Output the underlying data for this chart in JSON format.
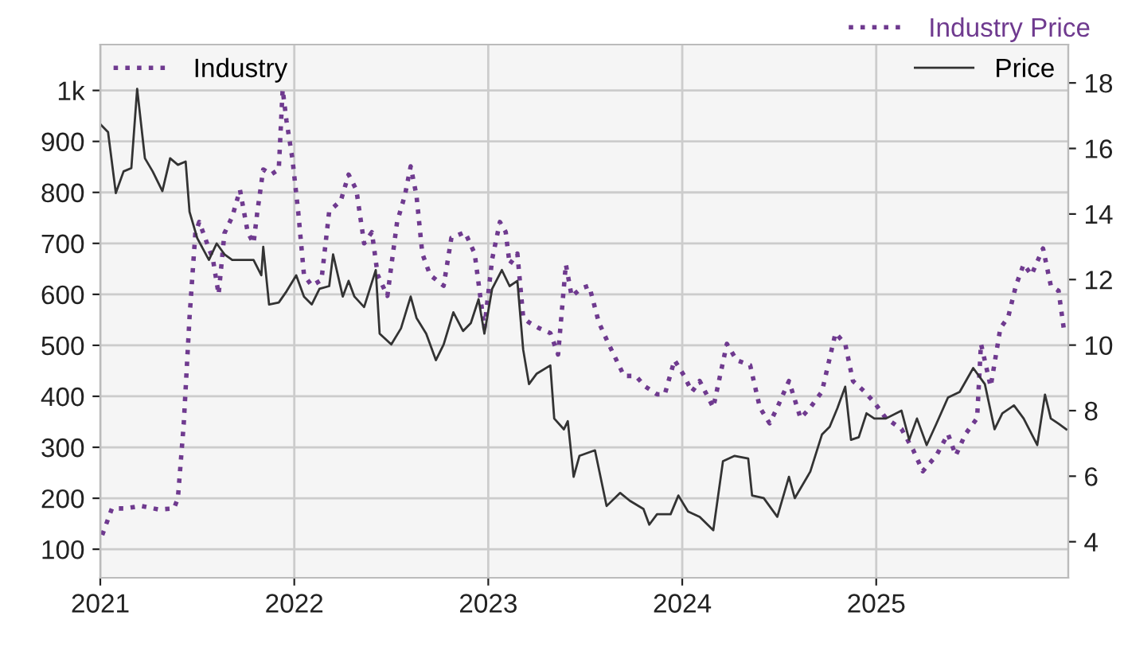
{
  "chart_data": {
    "type": "line",
    "title": "Industry Price",
    "legend": "top",
    "grid": true,
    "xlim": [
      2021,
      2025.99
    ],
    "xticks": [
      2021,
      2022,
      2023,
      2024,
      2025
    ],
    "ylim": [
      44,
      1090
    ],
    "yticks": [
      100,
      200,
      300,
      400,
      500,
      600,
      700,
      800,
      900,
      {
        "value": 1000,
        "label": "1k"
      }
    ],
    "y2lim": [
      2.9,
      19.17
    ],
    "y2ticks": [
      4,
      6,
      8,
      10,
      12,
      14,
      16,
      18
    ],
    "series": [
      {
        "name": "Industry",
        "color": "#6f3a8f",
        "line_style": "dotted",
        "axis": "y",
        "x": [
          2021.01,
          2021.06,
          2021.13,
          2021.21,
          2021.3,
          2021.38,
          2021.4,
          2021.43,
          2021.46,
          2021.49,
          2021.51,
          2021.56,
          2021.58,
          2021.61,
          2021.64,
          2021.68,
          2021.72,
          2021.76,
          2021.79,
          2021.81,
          2021.84,
          2021.88,
          2021.92,
          2021.94,
          2021.96,
          2021.99,
          2022.02,
          2022.05,
          2022.09,
          2022.14,
          2022.18,
          2022.24,
          2022.28,
          2022.32,
          2022.36,
          2022.4,
          2022.43,
          2022.48,
          2022.53,
          2022.57,
          2022.6,
          2022.63,
          2022.66,
          2022.7,
          2022.77,
          2022.81,
          2022.88,
          2022.93,
          2022.98,
          2023.02,
          2023.06,
          2023.09,
          2023.11,
          2023.15,
          2023.18,
          2023.21,
          2023.26,
          2023.32,
          2023.36,
          2023.4,
          2023.43,
          2023.48,
          2023.52,
          2023.57,
          2023.62,
          2023.7,
          2023.76,
          2023.81,
          2023.87,
          2023.91,
          2023.96,
          2024.01,
          2024.05,
          2024.09,
          2024.16,
          2024.23,
          2024.28,
          2024.35,
          2024.4,
          2024.45,
          2024.49,
          2024.55,
          2024.61,
          2024.66,
          2024.72,
          2024.79,
          2024.84,
          2024.88,
          2024.94,
          2024.99,
          2025.05,
          2025.13,
          2025.19,
          2025.24,
          2025.31,
          2025.37,
          2025.41,
          2025.46,
          2025.52,
          2025.54,
          2025.59,
          2025.64,
          2025.68,
          2025.72,
          2025.76,
          2025.8,
          2025.86,
          2025.9,
          2025.94,
          2025.97
        ],
        "values": [
          128,
          180,
          180,
          185,
          178,
          180,
          200,
          345,
          555,
          720,
          742,
          690,
          670,
          600,
          720,
          752,
          805,
          722,
          700,
          763,
          845,
          835,
          845,
          1002,
          940,
          867,
          763,
          638,
          617,
          628,
          763,
          784,
          835,
          805,
          700,
          722,
          638,
          597,
          742,
          794,
          851,
          794,
          680,
          638,
          617,
          711,
          722,
          680,
          534,
          669,
          742,
          722,
          659,
          680,
          555,
          545,
          534,
          524,
          482,
          659,
          596,
          612,
          617,
          545,
          503,
          440,
          440,
          419,
          404,
          404,
          471,
          440,
          409,
          430,
          378,
          503,
          471,
          461,
          378,
          347,
          378,
          430,
          357,
          378,
          409,
          524,
          503,
          430,
          409,
          388,
          357,
          336,
          295,
          253,
          284,
          326,
          284,
          326,
          357,
          503,
          419,
          534,
          555,
          617,
          659,
          638,
          690,
          617,
          607,
          524
        ]
      },
      {
        "name": "Price",
        "color": "#333333",
        "line_style": "solid",
        "axis": "y2",
        "x": [
          2021.0,
          2021.04,
          2021.08,
          2021.12,
          2021.16,
          2021.19,
          2021.23,
          2021.27,
          2021.32,
          2021.36,
          2021.4,
          2021.44,
          2021.46,
          2021.5,
          2021.56,
          2021.6,
          2021.64,
          2021.68,
          2021.73,
          2021.79,
          2021.83,
          2021.84,
          2021.87,
          2021.92,
          2021.96,
          2022.01,
          2022.05,
          2022.09,
          2022.13,
          2022.18,
          2022.2,
          2022.25,
          2022.28,
          2022.31,
          2022.36,
          2022.42,
          2022.44,
          2022.5,
          2022.55,
          2022.6,
          2022.63,
          2022.68,
          2022.73,
          2022.77,
          2022.82,
          2022.87,
          2022.91,
          2022.95,
          2022.98,
          2023.02,
          2023.07,
          2023.11,
          2023.15,
          2023.18,
          2023.21,
          2023.25,
          2023.32,
          2023.34,
          2023.39,
          2023.41,
          2023.44,
          2023.47,
          2023.55,
          2023.61,
          2023.68,
          2023.73,
          2023.8,
          2023.83,
          2023.87,
          2023.94,
          2023.98,
          2024.03,
          2024.09,
          2024.16,
          2024.21,
          2024.27,
          2024.34,
          2024.36,
          2024.42,
          2024.49,
          2024.55,
          2024.58,
          2024.66,
          2024.72,
          2024.76,
          2024.8,
          2024.84,
          2024.87,
          2024.91,
          2024.95,
          2024.99,
          2025.05,
          2025.13,
          2025.17,
          2025.21,
          2025.26,
          2025.31,
          2025.37,
          2025.43,
          2025.5,
          2025.56,
          2025.61,
          2025.65,
          2025.71,
          2025.76,
          2025.83,
          2025.87,
          2025.9,
          2025.94,
          2025.98
        ],
        "values": [
          16.74,
          16.5,
          14.64,
          15.3,
          15.4,
          17.82,
          15.7,
          15.3,
          14.7,
          15.7,
          15.5,
          15.6,
          14.07,
          13.26,
          12.6,
          13.1,
          12.77,
          12.6,
          12.6,
          12.6,
          12.13,
          13.0,
          11.24,
          11.3,
          11.64,
          12.13,
          11.48,
          11.24,
          11.72,
          11.8,
          12.77,
          11.48,
          11.96,
          11.48,
          11.16,
          12.29,
          10.35,
          10.02,
          10.51,
          11.48,
          10.83,
          10.35,
          9.54,
          10.02,
          11.0,
          10.43,
          10.67,
          11.4,
          10.35,
          11.72,
          12.29,
          11.8,
          11.96,
          9.86,
          8.81,
          9.13,
          9.38,
          7.76,
          7.43,
          7.68,
          5.98,
          6.62,
          6.79,
          5.09,
          5.49,
          5.25,
          5.0,
          4.52,
          4.84,
          4.84,
          5.41,
          4.92,
          4.76,
          4.35,
          6.46,
          6.62,
          6.54,
          5.41,
          5.33,
          4.76,
          5.98,
          5.33,
          6.14,
          7.27,
          7.51,
          8.08,
          8.73,
          7.11,
          7.19,
          7.92,
          7.76,
          7.76,
          8.0,
          7.11,
          7.76,
          6.95,
          7.6,
          8.4,
          8.57,
          9.3,
          8.81,
          7.43,
          7.92,
          8.16,
          7.76,
          6.95,
          8.49,
          7.76,
          7.6,
          7.43
        ]
      }
    ]
  }
}
